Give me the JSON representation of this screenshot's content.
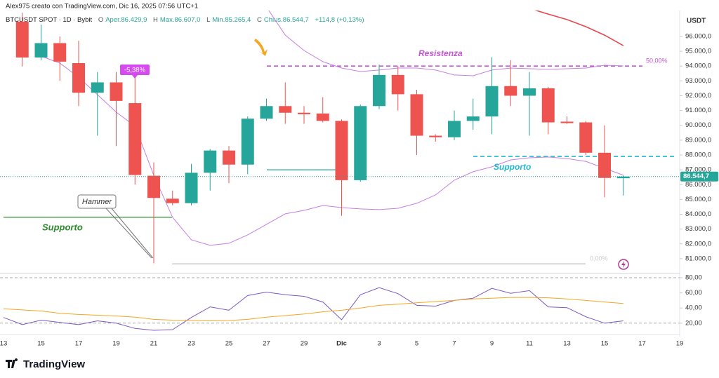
{
  "header": {
    "author_line": "Alex975 creato con TradingView.com, Dic 16, 2025 07:56 UTC+1",
    "symbol": "BTCUSDT SPOT · 1D · Bybit",
    "ohlc": [
      {
        "key": "O",
        "text": "Aper.86.429,9"
      },
      {
        "key": "H",
        "text": "Max.86.607,0"
      },
      {
        "key": "L",
        "text": "Min.85.265,4"
      },
      {
        "key": "C",
        "text": "Chius.86.544,7"
      }
    ],
    "change": "+114,8 (+0,13%)"
  },
  "footer": {
    "logo": "TradingView"
  },
  "chart_data": [
    {
      "type": "candlestick",
      "axis_unit": "USDT",
      "categories": [
        "13",
        null,
        "15",
        null,
        "17",
        null,
        "19",
        null,
        "21",
        null,
        "23",
        null,
        "25",
        null,
        "27",
        null,
        "29",
        null,
        "Dic",
        null,
        "3",
        null,
        "5",
        null,
        "7",
        null,
        "9",
        null,
        "11",
        null,
        "13",
        null,
        "15",
        null,
        "17",
        null,
        "19"
      ],
      "open": [
        null,
        97000,
        94580,
        95550,
        94200,
        92200,
        92900,
        91500,
        86600,
        85050,
        84750,
        86800,
        88300,
        87350,
        90450,
        91300,
        90850,
        90800,
        90300,
        86300,
        91300,
        93400,
        92100,
        89300,
        89200,
        90300,
        90600,
        92650,
        92000,
        92500,
        90250,
        90200,
        88150,
        86429.9,
        null,
        null,
        null
      ],
      "high": [
        null,
        97600,
        96800,
        96000,
        95700,
        93600,
        93600,
        93300,
        87500,
        85600,
        87400,
        88400,
        88600,
        90600,
        91800,
        92900,
        91300,
        91900,
        90400,
        91400,
        94100,
        94000,
        92400,
        89400,
        91000,
        91800,
        94600,
        94400,
        93600,
        92600,
        90600,
        90300,
        90000,
        86607,
        null,
        null,
        null
      ],
      "low": [
        null,
        93970,
        94400,
        93000,
        91300,
        89300,
        88600,
        86000,
        80700,
        84600,
        84600,
        85600,
        86100,
        86700,
        90300,
        90100,
        90100,
        90200,
        83900,
        86200,
        91100,
        91000,
        88000,
        88900,
        89000,
        89700,
        89400,
        91300,
        89300,
        89400,
        90100,
        88000,
        85150,
        85265.4,
        null,
        null,
        null
      ],
      "close": [
        null,
        94580,
        95550,
        94300,
        92200,
        92900,
        91650,
        86650,
        85100,
        84750,
        86800,
        88300,
        87350,
        90450,
        91300,
        90850,
        90750,
        90300,
        86300,
        91300,
        93400,
        92100,
        89300,
        89200,
        90300,
        90600,
        92650,
        92000,
        92500,
        90200,
        90150,
        88150,
        86450,
        86544.7,
        null,
        null,
        null
      ],
      "up_color": "#26a69a",
      "down_color": "#ef5350",
      "ylim": [
        80000,
        97750
      ],
      "yticks": [
        {
          "value": 81000,
          "label": "81.000,0"
        },
        {
          "value": 82000,
          "label": "82.000,0"
        },
        {
          "value": 83000,
          "label": "83.000,0"
        },
        {
          "value": 84000,
          "label": "84.000,0"
        },
        {
          "value": 85000,
          "label": "85.000,0"
        },
        {
          "value": 86000,
          "label": "86.000,0"
        },
        {
          "value": 87000,
          "label": "87.000,0"
        },
        {
          "value": 88000,
          "label": "88.000,0"
        },
        {
          "value": 89000,
          "label": "89.000,0"
        },
        {
          "value": 90000,
          "label": "90.000,0"
        },
        {
          "value": 91000,
          "label": "91.000,0"
        },
        {
          "value": 92000,
          "label": "92.000,0"
        },
        {
          "value": 93000,
          "label": "93.000,0"
        },
        {
          "value": 94000,
          "label": "94.000,0"
        },
        {
          "value": 95000,
          "label": "95.000,0"
        },
        {
          "value": 96000,
          "label": "96.000,0"
        }
      ],
      "last_price": {
        "value": 86544.7,
        "label": "86.544,7"
      },
      "overlays": [
        {
          "color": "#c77ee0",
          "values": [
            null,
            null,
            94670,
            94200,
            93250,
            92070,
            90890,
            89940,
            86630,
            83790,
            82270,
            81900,
            82040,
            82610,
            83320,
            84030,
            84260,
            84590,
            84450,
            84360,
            84310,
            84400,
            84740,
            85300,
            86300,
            86870,
            87200,
            87670,
            87810,
            87860,
            87760,
            87570,
            87100,
            86630,
            null,
            null,
            null
          ]
        },
        {
          "color": "#c77ee0",
          "values": [
            null,
            null,
            null,
            null,
            null,
            null,
            null,
            null,
            null,
            null,
            null,
            null,
            null,
            null,
            97990,
            96090,
            95050,
            94300,
            93870,
            93630,
            93730,
            93870,
            93870,
            93730,
            93400,
            93350,
            93730,
            93870,
            93820,
            93780,
            93820,
            93870,
            94060,
            94010,
            null,
            null,
            null
          ]
        },
        {
          "color": "#e8474c",
          "values": [
            null,
            null,
            null,
            null,
            null,
            null,
            null,
            null,
            null,
            null,
            null,
            null,
            null,
            null,
            null,
            null,
            null,
            null,
            null,
            null,
            null,
            null,
            null,
            null,
            null,
            null,
            null,
            null,
            97890,
            97510,
            97140,
            96660,
            96090,
            95380,
            null,
            null,
            null
          ]
        }
      ],
      "levels": [
        {
          "value": 94000,
          "color": "#c653d6",
          "dashed": true
        },
        {
          "value": 87900,
          "color": "#22b8cf",
          "dashed": true
        },
        {
          "value": 83800,
          "color": "#2e8b2e",
          "dashed": false
        },
        {
          "value": 87000,
          "color": "#26a69a",
          "dashed": false
        },
        {
          "value": 80650,
          "color": "#bdbdbd",
          "dashed": false
        }
      ],
      "annotations": [
        "Resistenza",
        "Supporto",
        "Supporto",
        "Hammer",
        "-5,38%",
        "50,00%",
        "0,00%"
      ]
    },
    {
      "type": "line",
      "ylim": [
        5.9,
        83.75
      ],
      "yticks": [
        {
          "value": 20,
          "label": "20,00"
        },
        {
          "value": 40,
          "label": "40,00"
        },
        {
          "value": 60,
          "label": "60,00"
        },
        {
          "value": 80,
          "label": "80,00"
        }
      ],
      "bands": [
        20,
        80
      ],
      "series": [
        {
          "color": "#7e57c2",
          "values": [
            27.5,
            18,
            24,
            21,
            18,
            23,
            20,
            13,
            10.5,
            11.5,
            27.5,
            41.5,
            37,
            56.5,
            61,
            57.5,
            55.5,
            48,
            24.5,
            57.5,
            67,
            59,
            43.5,
            42.5,
            50,
            53,
            66,
            59.5,
            63,
            41.5,
            40.5,
            28.5,
            20,
            23,
            null,
            null,
            null
          ]
        },
        {
          "color": "#f5a623",
          "values": [
            39,
            37.5,
            36,
            33,
            31.5,
            30.5,
            29.5,
            28,
            25,
            24,
            23.5,
            23,
            23.5,
            25,
            28,
            30,
            32,
            35,
            37,
            40,
            43.5,
            45,
            47,
            48.5,
            50,
            52,
            53,
            54,
            54,
            53.5,
            52,
            50,
            48,
            46,
            null,
            null,
            null
          ]
        }
      ]
    }
  ]
}
